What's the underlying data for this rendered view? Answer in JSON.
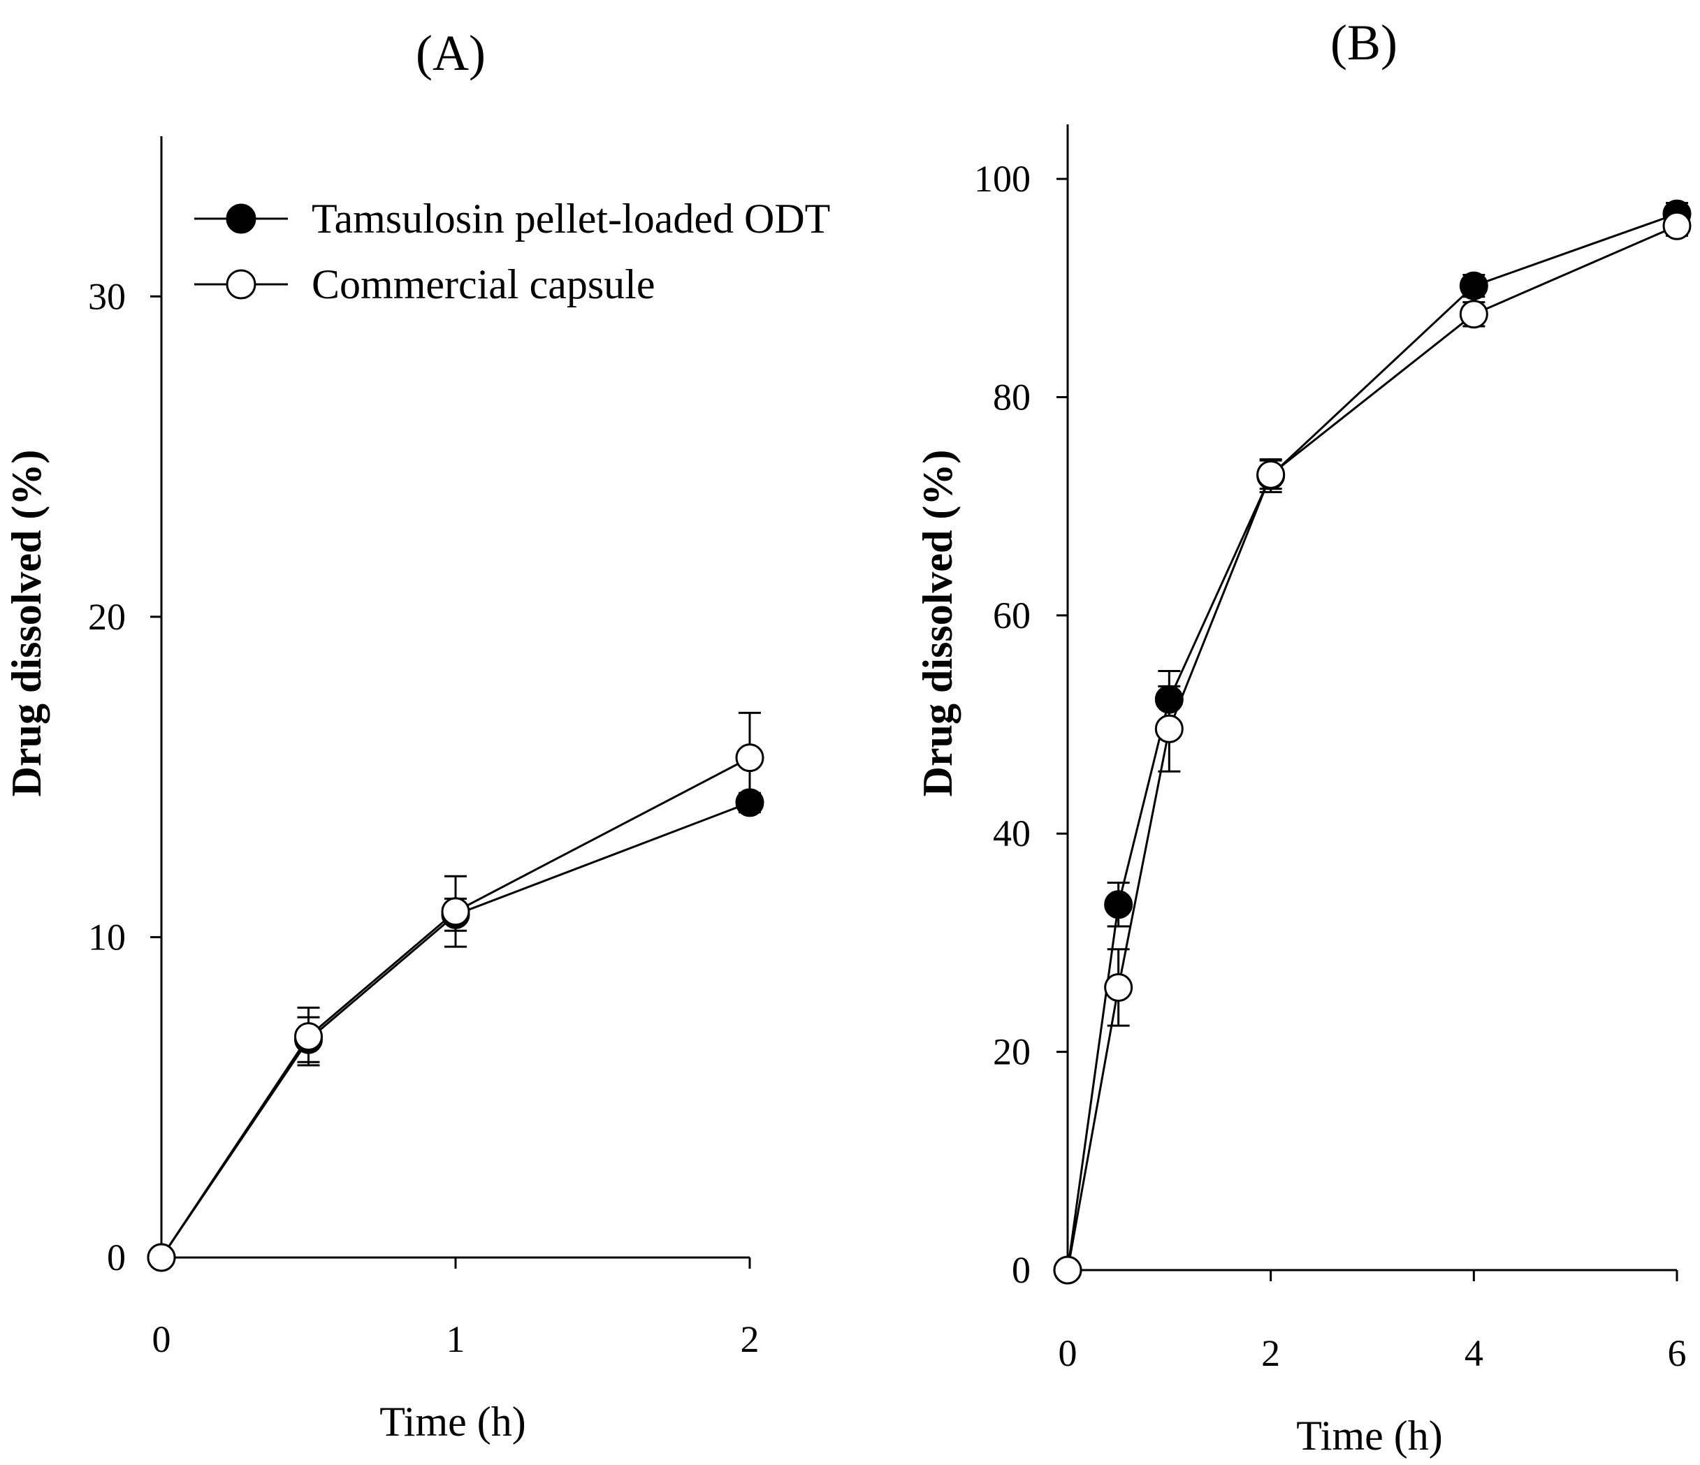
{
  "figure": {
    "legend": [
      {
        "label": "Tamsulosin pellet-loaded ODT",
        "marker": "filled-circle"
      },
      {
        "label": "Commercial capsule",
        "marker": "open-circle"
      }
    ]
  },
  "chart_data": [
    {
      "type": "line",
      "title": "(A)",
      "xlabel": "Time (h)",
      "ylabel": "Drug dissolved (%)",
      "xlim": [
        0,
        2
      ],
      "ylim": [
        0,
        35
      ],
      "xticks": [
        0,
        1,
        2
      ],
      "xtick_labels": [
        "0",
        "1",
        "2"
      ],
      "yticks": [
        0,
        10,
        20,
        30
      ],
      "ytick_labels": [
        "0",
        "10",
        "20",
        "30"
      ],
      "legend_position": "top-left",
      "series": [
        {
          "name": "Tamsulosin pellet-loaded ODT",
          "marker": "filled-circle",
          "x": [
            0,
            0.5,
            1,
            2
          ],
          "y": [
            0,
            6.8,
            10.7,
            14.2
          ],
          "err": [
            0,
            0.7,
            0.5,
            0.3
          ]
        },
        {
          "name": "Commercial capsule",
          "marker": "open-circle",
          "x": [
            0,
            0.5,
            1,
            2
          ],
          "y": [
            0,
            6.9,
            10.8,
            15.6
          ],
          "err": [
            0,
            0.9,
            1.1,
            1.4
          ]
        }
      ]
    },
    {
      "type": "line",
      "title": "(B)",
      "xlabel": "Time (h)",
      "ylabel": "Drug dissolved (%)",
      "xlim": [
        0,
        6
      ],
      "ylim": [
        0,
        105
      ],
      "xticks": [
        0,
        2,
        4,
        6
      ],
      "xtick_labels": [
        "0",
        "2",
        "4",
        "6"
      ],
      "yticks": [
        0,
        20,
        40,
        60,
        80,
        100
      ],
      "ytick_labels": [
        "0",
        "20",
        "40",
        "60",
        "80",
        "100"
      ],
      "series": [
        {
          "name": "Tamsulosin pellet-loaded ODT",
          "marker": "filled-circle",
          "x": [
            0,
            0.5,
            1,
            2,
            4,
            6
          ],
          "y": [
            0,
            33.5,
            52.3,
            72.8,
            90.2,
            96.8
          ],
          "err": [
            0,
            2.0,
            2.6,
            1.5,
            1.0,
            1.0
          ]
        },
        {
          "name": "Commercial capsule",
          "marker": "open-circle",
          "x": [
            0,
            0.5,
            1,
            2,
            4,
            6
          ],
          "y": [
            0,
            25.9,
            49.6,
            72.9,
            87.6,
            95.7
          ],
          "err": [
            0,
            3.5,
            3.9,
            1.3,
            1.1,
            0.9
          ]
        }
      ]
    }
  ]
}
